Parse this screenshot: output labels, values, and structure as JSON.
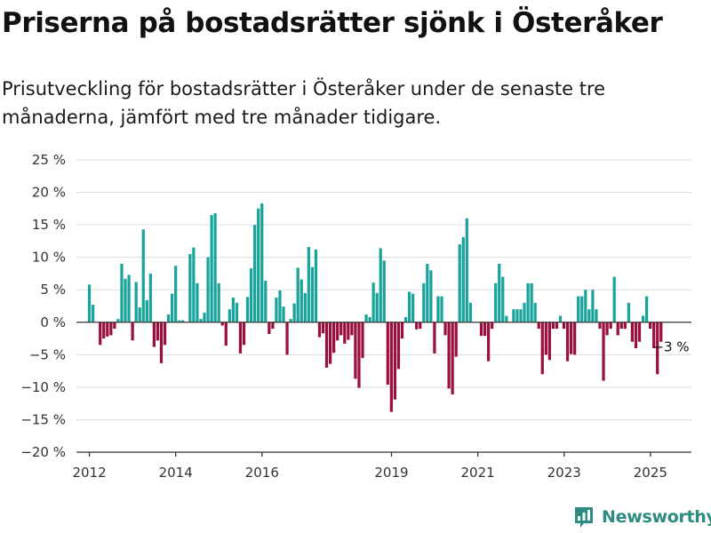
{
  "title": "Priserna på bostadsrätter sjönk i Österåker",
  "subtitle": "Prisutveckling för bostadsrätter i Österåker under de senaste tre månaderna, jämfört med tre månader tidigare.",
  "brand": "Newsworthy",
  "colors": {
    "positive": "#1aa39a",
    "negative": "#9b0f3c",
    "grid": "#dddddd",
    "zero": "#333333",
    "brand": "#2e8b82"
  },
  "chart_data": {
    "type": "bar",
    "ylim": [
      -20,
      25
    ],
    "yticks": [
      -20,
      -15,
      -10,
      -5,
      0,
      5,
      10,
      15,
      20,
      25
    ],
    "ytick_labels": [
      "−20 %",
      "−15 %",
      "−10 %",
      "−5 %",
      "0 %",
      "5 %",
      "10 %",
      "15 %",
      "20 %",
      "25 %"
    ],
    "xlim": [
      2011.7,
      2025.95
    ],
    "xticks": [
      2012,
      2014,
      2016,
      2019,
      2021,
      2023,
      2025
    ],
    "xtick_labels": [
      "2012",
      "2014",
      "2016",
      "2019",
      "2021",
      "2023",
      "2025"
    ],
    "annotation": {
      "text": "−3 %",
      "x": 2025.3,
      "y": -3
    },
    "x_start": 2012.0,
    "x_step": 0.0833,
    "values": [
      5.8,
      2.7,
      0,
      -3.5,
      -2.5,
      -2.2,
      -2.0,
      -1.0,
      0.5,
      9.0,
      6.7,
      7.3,
      -2.8,
      6.2,
      2.3,
      14.3,
      3.4,
      7.5,
      -3.8,
      -2.8,
      -6.3,
      -3.5,
      1.2,
      4.4,
      8.7,
      0.3,
      0.3,
      0,
      10.5,
      11.5,
      6.0,
      0.5,
      1.5,
      10.0,
      16.5,
      16.8,
      6.0,
      -0.5,
      -3.6,
      2.0,
      3.8,
      3.0,
      -4.8,
      -3.5,
      3.9,
      8.3,
      15.0,
      17.5,
      18.3,
      6.4,
      -1.8,
      -1.0,
      3.8,
      4.9,
      2.4,
      -5.0,
      0.5,
      2.9,
      8.4,
      6.6,
      4.5,
      11.6,
      8.5,
      11.2,
      -2.3,
      -1.7,
      -7.0,
      -6.4,
      -4.7,
      -2.8,
      -2.0,
      -3.3,
      -2.7,
      -2.0,
      -8.7,
      -10.1,
      -5.5,
      1.2,
      0.8,
      6.1,
      4.5,
      11.4,
      9.5,
      -9.6,
      -13.8,
      -11.9,
      -7.2,
      -2.5,
      0.8,
      4.7,
      4.4,
      -1.1,
      -1.0,
      6.0,
      9.0,
      8.0,
      -4.8,
      4.0,
      4.0,
      -2.0,
      -10.2,
      -11.1,
      -5.3,
      12.0,
      13.1,
      16.0,
      3.0,
      0,
      0,
      -2.1,
      -2.1,
      -6.0,
      -1.0,
      6.0,
      9.0,
      7.0,
      1.0,
      0,
      2.0,
      2.0,
      2.0,
      3.0,
      6.0,
      6.0,
      3.0,
      -1.0,
      -8.0,
      -5.0,
      -5.8,
      -1.0,
      -1.0,
      1.0,
      -1.0,
      -6.0,
      -4.9,
      -5.0,
      4.0,
      4.0,
      5.0,
      2.0,
      5.0,
      2.0,
      -1.0,
      -9.0,
      -2.0,
      -1.0,
      7.0,
      -2.0,
      -1.0,
      -1.0,
      3.0,
      -3.0,
      -4.0,
      -3.0,
      1.0,
      4.0,
      -1.0,
      -4.0,
      -8.0,
      -3.0
    ]
  }
}
